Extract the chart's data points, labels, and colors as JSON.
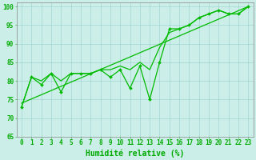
{
  "xlabel": "Humidité relative (%)",
  "xlim": [
    -0.5,
    23.5
  ],
  "ylim": [
    65,
    101
  ],
  "yticks": [
    65,
    70,
    75,
    80,
    85,
    90,
    95,
    100
  ],
  "xticks": [
    0,
    1,
    2,
    3,
    4,
    5,
    6,
    7,
    8,
    9,
    10,
    11,
    12,
    13,
    14,
    15,
    16,
    17,
    18,
    19,
    20,
    21,
    22,
    23
  ],
  "main_x": [
    0,
    1,
    2,
    3,
    4,
    5,
    6,
    7,
    8,
    9,
    10,
    11,
    12,
    13,
    14,
    15,
    16,
    17,
    18,
    19,
    20,
    21,
    22,
    23
  ],
  "main_y": [
    73,
    81,
    79,
    82,
    77,
    82,
    82,
    82,
    83,
    81,
    83,
    78,
    84,
    75,
    85,
    94,
    94,
    95,
    97,
    98,
    99,
    98,
    98,
    100
  ],
  "smooth_x": [
    0,
    1,
    2,
    3,
    4,
    5,
    6,
    7,
    8,
    9,
    10,
    11,
    12,
    13,
    14,
    15,
    16,
    17,
    18,
    19,
    20,
    21,
    22,
    23
  ],
  "smooth_y": [
    73,
    81,
    80,
    82,
    80,
    82,
    82,
    82,
    83,
    83,
    84,
    83,
    85,
    83,
    89,
    93,
    94,
    95,
    97,
    98,
    99,
    98,
    98,
    100
  ],
  "trend_x": [
    0,
    23
  ],
  "trend_y": [
    74,
    100
  ],
  "line_color": "#00bb00",
  "bg_color": "#cceee8",
  "grid_color": "#99cccc",
  "text_color": "#00aa00",
  "xlabel_fontsize": 7,
  "tick_fontsize": 5.5
}
